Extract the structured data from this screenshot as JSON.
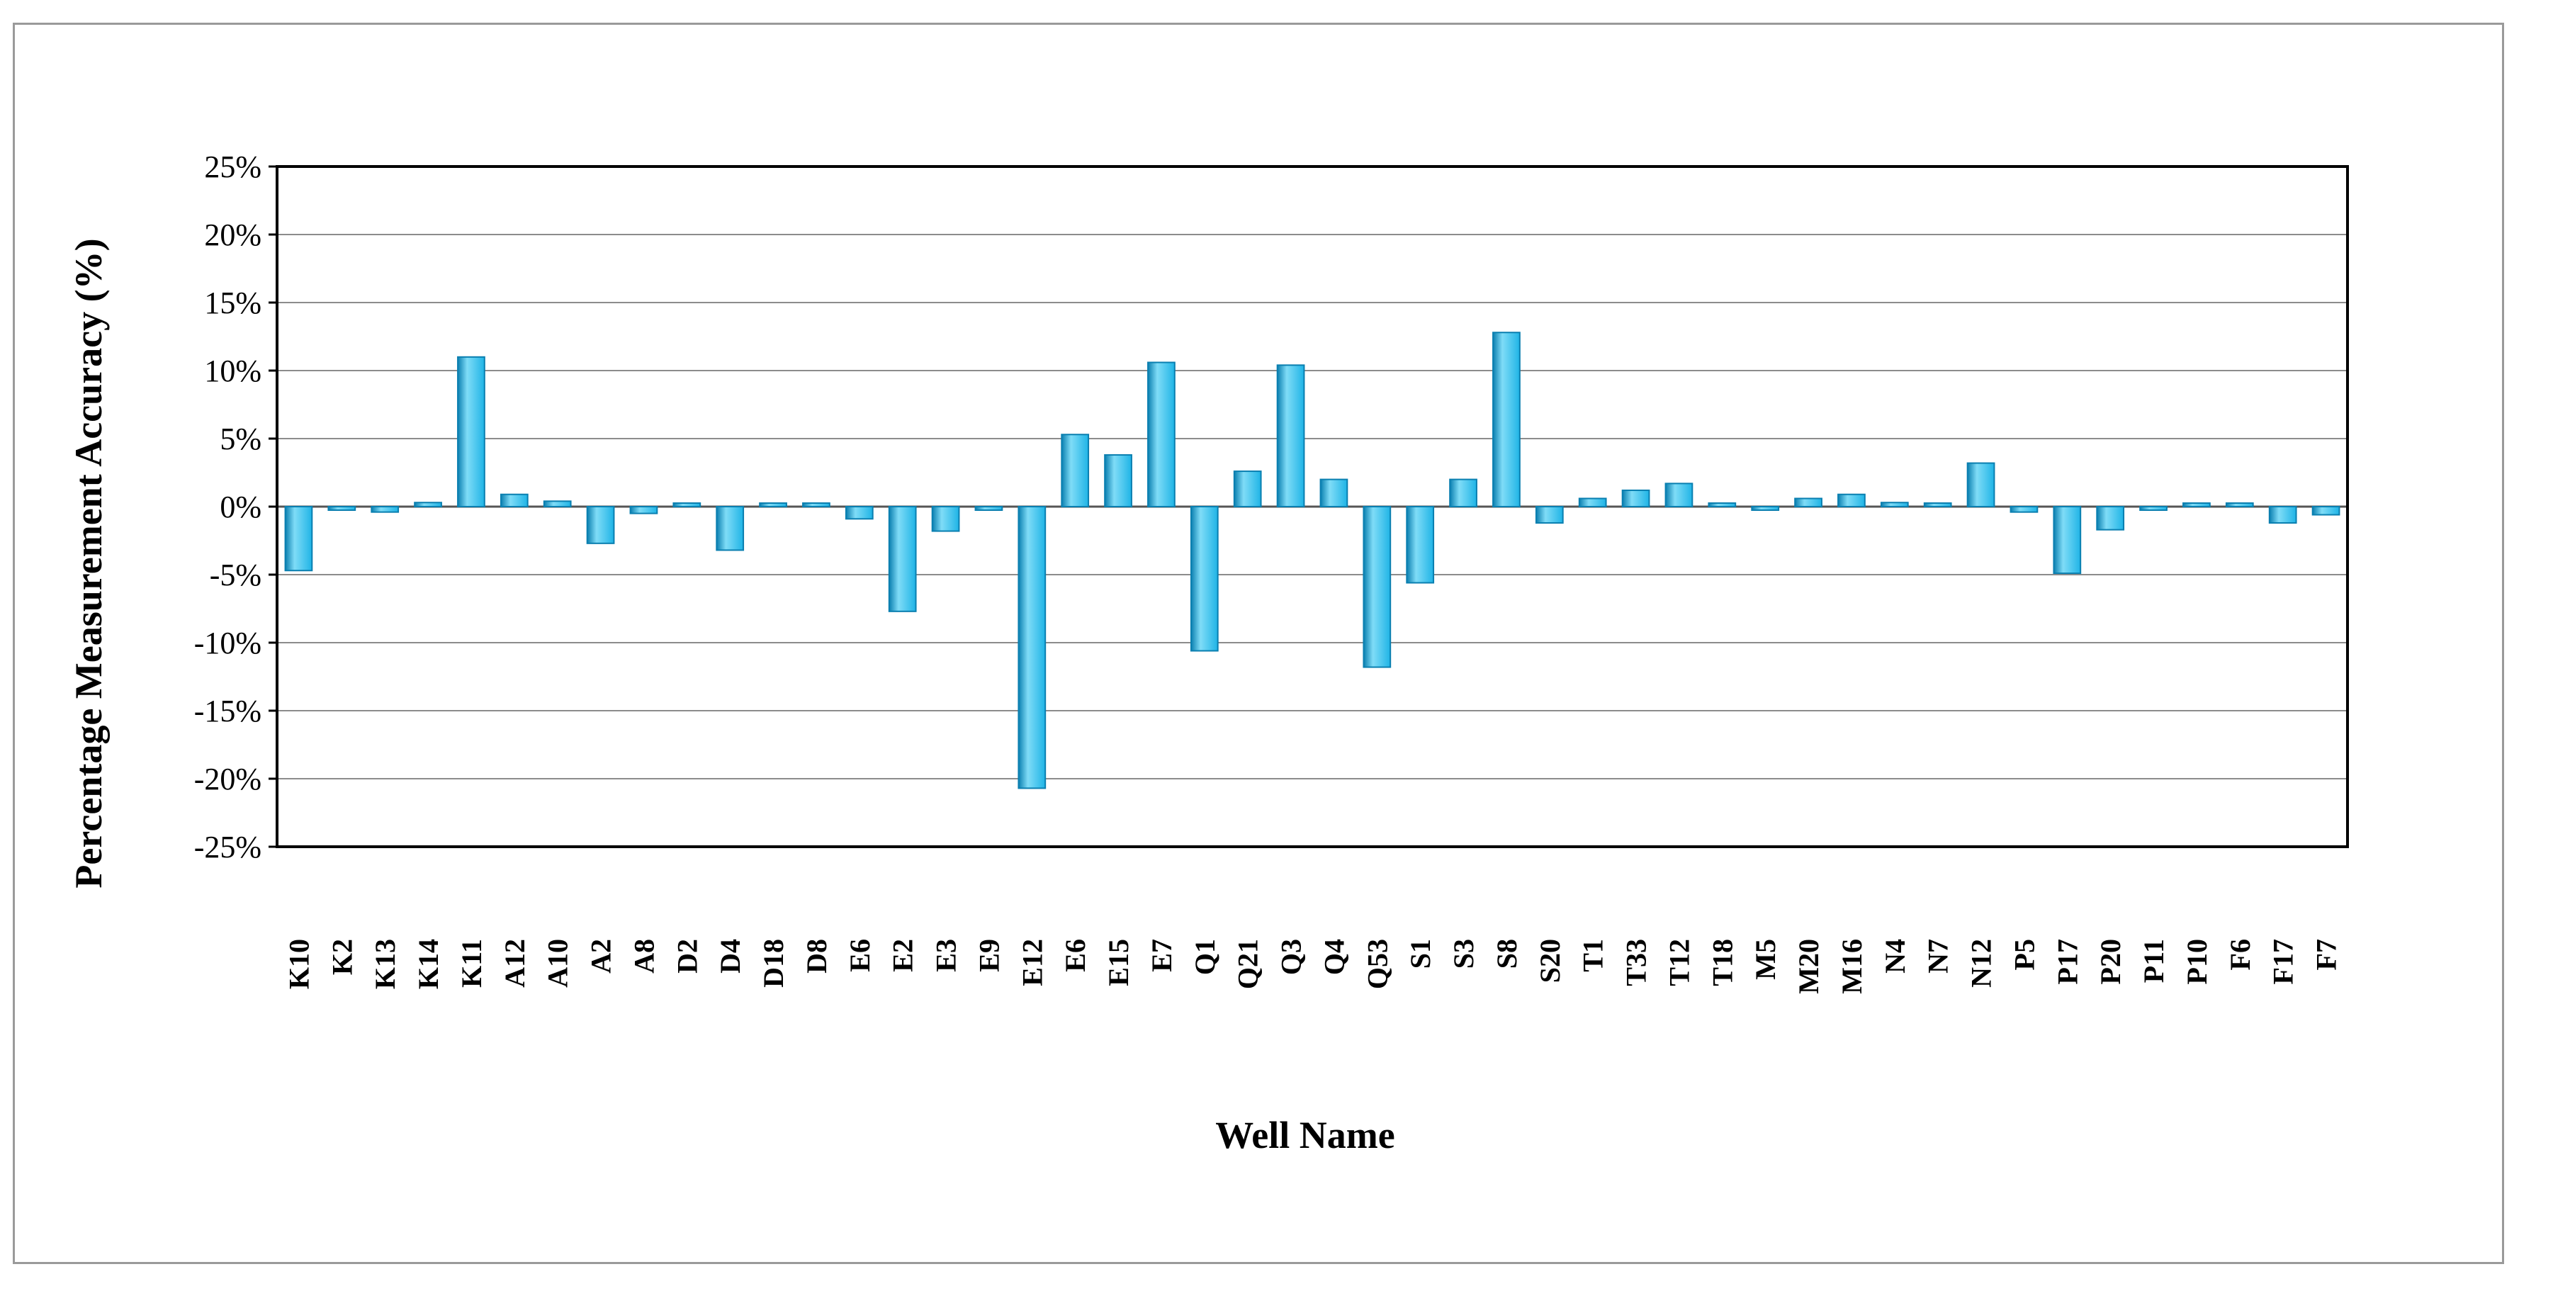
{
  "chart_data": {
    "type": "bar",
    "title": "",
    "xlabel": "Well Name",
    "ylabel": "Percentage Measurement Accuracy (%)",
    "ylim": [
      -25,
      25
    ],
    "y_ticks": [
      25,
      20,
      15,
      10,
      5,
      0,
      -5,
      -10,
      -15,
      -20,
      -25
    ],
    "y_tick_format": "{v}%",
    "grid": true,
    "legend": "none",
    "bar_color": "#1fb4e6",
    "bar_color_dark": "#0a7fb0",
    "bar_color_light": "#7fdcf7",
    "categories": [
      "K10",
      "K2",
      "K13",
      "K14",
      "K11",
      "A12",
      "A10",
      "A2",
      "A8",
      "D2",
      "D4",
      "D18",
      "D8",
      "E6",
      "E2",
      "E3",
      "E9",
      "E12",
      "E6",
      "E15",
      "E7",
      "Q1",
      "Q21",
      "Q3",
      "Q4",
      "Q53",
      "S1",
      "S3",
      "S8",
      "S20",
      "T1",
      "T33",
      "T12",
      "T18",
      "M5",
      "M20",
      "M16",
      "N4",
      "N7",
      "N12",
      "P5",
      "P17",
      "P20",
      "P11",
      "P10",
      "F6",
      "F17",
      "F7"
    ],
    "values": [
      -4.7,
      -0.2,
      -0.4,
      0.3,
      11.0,
      0.9,
      0.4,
      -2.7,
      -0.5,
      0.0,
      -3.2,
      0.1,
      0.0,
      -0.9,
      -7.7,
      -1.8,
      -0.2,
      -20.7,
      5.3,
      3.8,
      10.6,
      -10.6,
      2.6,
      10.4,
      2.0,
      -11.8,
      -5.6,
      2.0,
      12.8,
      -1.2,
      0.6,
      1.2,
      1.7,
      0.1,
      -0.2,
      0.6,
      0.9,
      0.3,
      0.0,
      3.2,
      -0.4,
      -4.9,
      -1.7,
      -0.2,
      0.0,
      0.1,
      -1.2,
      -0.6
    ]
  }
}
